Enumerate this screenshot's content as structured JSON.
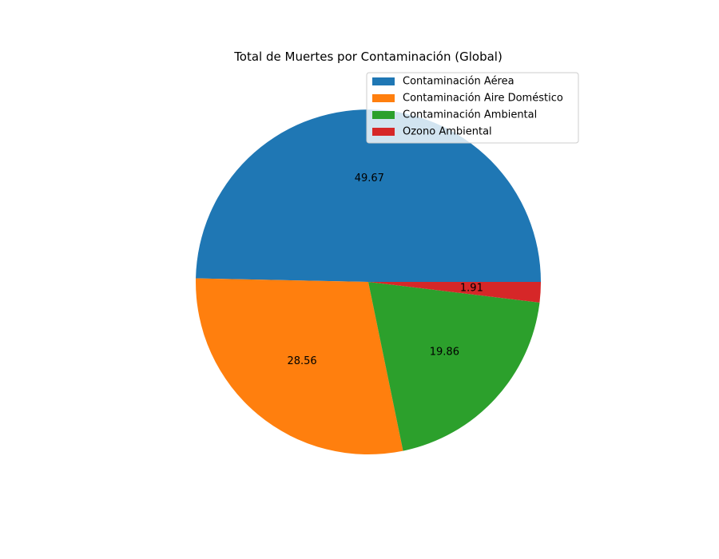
{
  "chart_data": {
    "type": "pie",
    "title": "Total de Muertes por Contaminación (Global)",
    "labels": [
      "Contaminación Aérea",
      "Contaminación Aire Doméstico",
      "Contaminación Ambiental",
      "Ozono Ambiental"
    ],
    "values": [
      49.67,
      28.56,
      19.86,
      1.91
    ],
    "value_labels": [
      "49.67",
      "28.56",
      "19.86",
      "1.91"
    ],
    "colors": [
      "#1f77b4",
      "#ff7f0e",
      "#2ca02c",
      "#d62728"
    ],
    "start_angle_deg": 0,
    "direction": "counterclockwise",
    "legend": {
      "placement": "top-right"
    }
  }
}
